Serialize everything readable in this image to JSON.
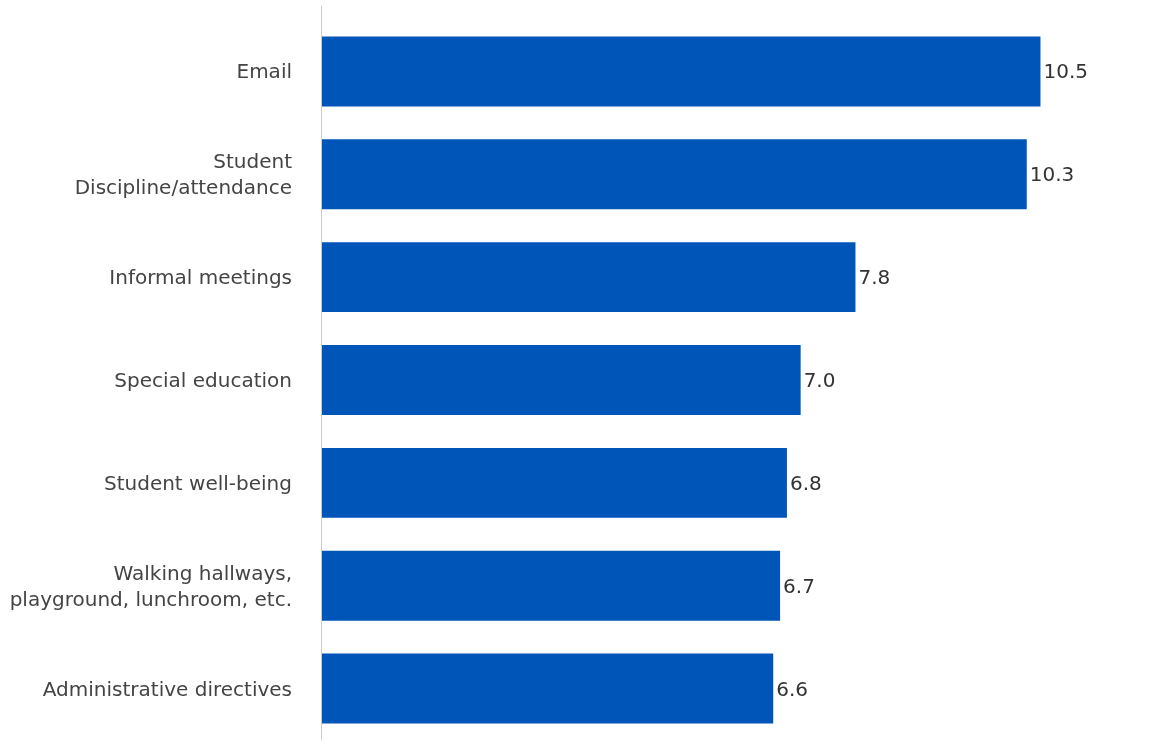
{
  "chart_data": {
    "type": "bar",
    "orientation": "horizontal",
    "categories": [
      "Email",
      "Student\nDiscipline/attendance",
      "Informal meetings",
      "Special education",
      "Student well-being",
      "Walking hallways,\nplayground, lunchroom, etc.",
      "Administrative directives"
    ],
    "values": [
      10.5,
      10.3,
      7.8,
      7.0,
      6.8,
      6.7,
      6.6
    ],
    "value_labels": [
      "10.5",
      "10.3",
      "7.8",
      "7.0",
      "6.8",
      "6.7",
      "6.6"
    ],
    "color": "#0055b8",
    "legend": false
  }
}
